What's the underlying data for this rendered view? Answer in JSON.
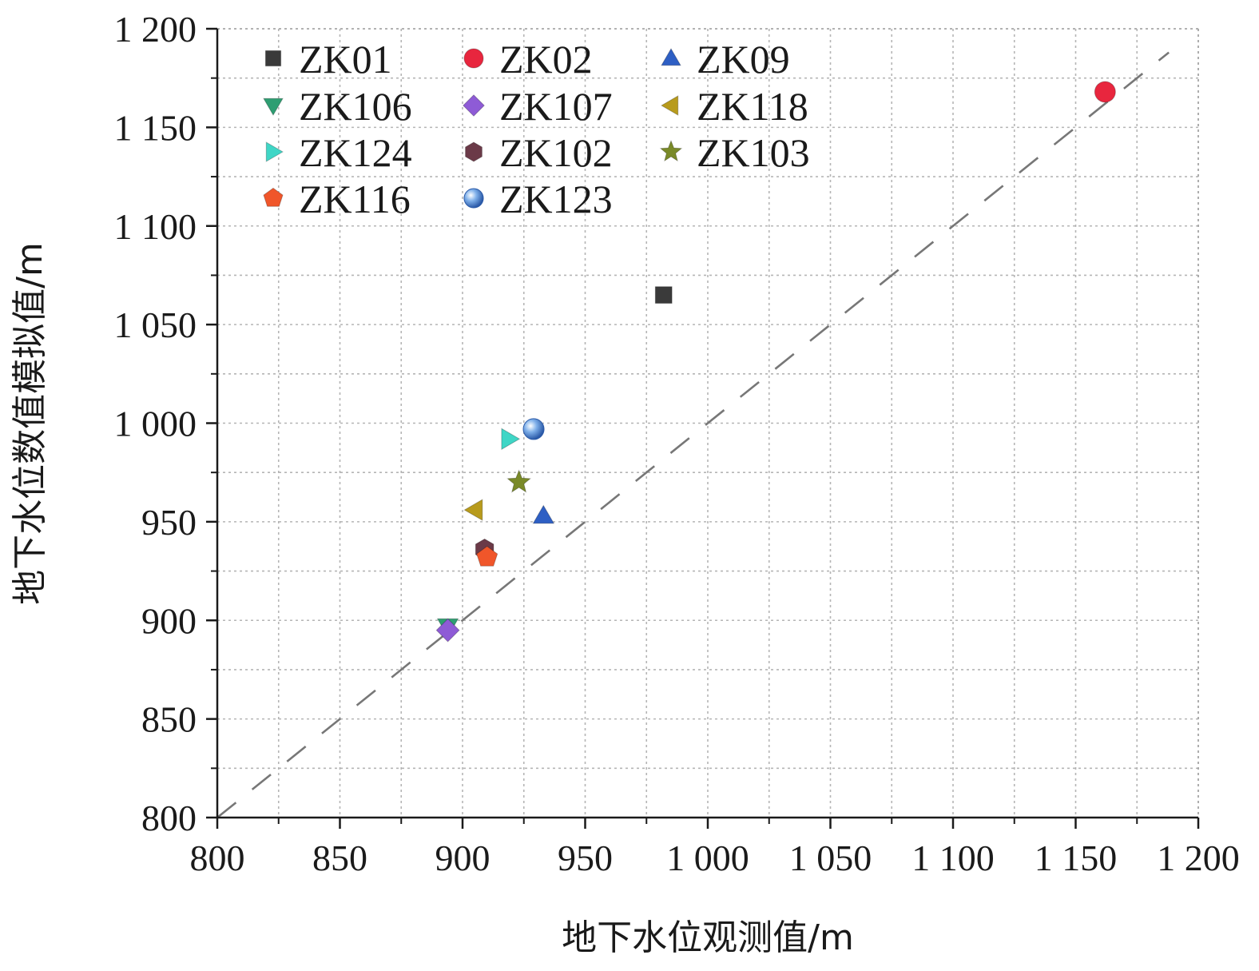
{
  "chart_data": {
    "type": "scatter",
    "xlabel": "地下水位观测值/m",
    "ylabel": "地下水位数值模拟值/m",
    "xlim": [
      800,
      1200
    ],
    "ylim": [
      800,
      1200
    ],
    "grid": true,
    "reference_line": {
      "style": "dashed",
      "from": [
        800,
        800
      ],
      "to": [
        1188,
        1188
      ],
      "color": "#777777"
    },
    "x_ticks": [
      {
        "value": 800,
        "label": "800"
      },
      {
        "value": 850,
        "label": "850"
      },
      {
        "value": 900,
        "label": "900"
      },
      {
        "value": 950,
        "label": "950"
      },
      {
        "value": 1000,
        "label": "1 000"
      },
      {
        "value": 1050,
        "label": "1 050"
      },
      {
        "value": 1100,
        "label": "1 100"
      },
      {
        "value": 1150,
        "label": "1 150"
      },
      {
        "value": 1200,
        "label": "1 200"
      }
    ],
    "y_ticks": [
      {
        "value": 800,
        "label": "800"
      },
      {
        "value": 850,
        "label": "850"
      },
      {
        "value": 900,
        "label": "900"
      },
      {
        "value": 950,
        "label": "950"
      },
      {
        "value": 1000,
        "label": "1 000"
      },
      {
        "value": 1050,
        "label": "1 050"
      },
      {
        "value": 1100,
        "label": "1 100"
      },
      {
        "value": 1150,
        "label": "1 150"
      },
      {
        "value": 1200,
        "label": "1 200"
      }
    ],
    "legend_position": "top-left",
    "series": [
      {
        "name": "ZK01",
        "marker": "square",
        "color": "#3a3a3a",
        "x": 982,
        "y": 1065
      },
      {
        "name": "ZK02",
        "marker": "circle",
        "color": "#e8263e",
        "x": 1162,
        "y": 1168
      },
      {
        "name": "ZK09",
        "marker": "triangle-up",
        "color": "#2e5fc4",
        "x": 933,
        "y": 953
      },
      {
        "name": "ZK106",
        "marker": "triangle-down",
        "color": "#2e9e72",
        "x": 894,
        "y": 897
      },
      {
        "name": "ZK107",
        "marker": "diamond",
        "color": "#8e5bd6",
        "x": 894,
        "y": 895
      },
      {
        "name": "ZK118",
        "marker": "triangle-left",
        "color": "#b89b1c",
        "x": 905,
        "y": 956
      },
      {
        "name": "ZK124",
        "marker": "triangle-right",
        "color": "#3fd6c6",
        "x": 919,
        "y": 992
      },
      {
        "name": "ZK102",
        "marker": "hexagon",
        "color": "#6b3a48",
        "x": 909,
        "y": 936
      },
      {
        "name": "ZK103",
        "marker": "star",
        "color": "#7a8a28",
        "x": 923,
        "y": 970
      },
      {
        "name": "ZK116",
        "marker": "pentagon",
        "color": "#f0562a",
        "x": 910,
        "y": 932
      },
      {
        "name": "ZK123",
        "marker": "sphere",
        "color": "#5b8fd6",
        "x": 929,
        "y": 997
      }
    ]
  }
}
